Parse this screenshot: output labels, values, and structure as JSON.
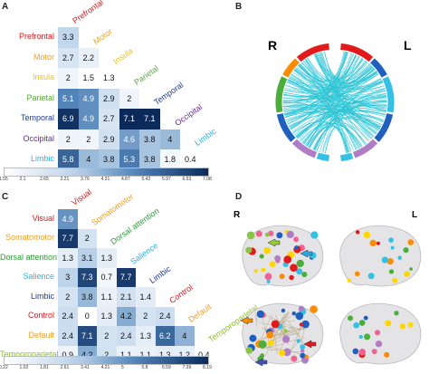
{
  "panels": {
    "a": {
      "letter": "A"
    },
    "b": {
      "letter": "B",
      "left_label": "R",
      "right_label": "L"
    },
    "c": {
      "letter": "C"
    },
    "d": {
      "letter": "D",
      "left_label": "R",
      "right_label": "L"
    }
  },
  "chart_data": [
    {
      "type": "heatmap",
      "panel": "A",
      "regions": [
        {
          "name": "Prefrontal",
          "color": "#d7191c"
        },
        {
          "name": "Motor",
          "color": "#f0a020"
        },
        {
          "name": "Insula",
          "color": "#e8c21a"
        },
        {
          "name": "Parietal",
          "color": "#5aa83a"
        },
        {
          "name": "Temporal",
          "color": "#1f3d8c"
        },
        {
          "name": "Occipital",
          "color": "#6a2c8c"
        },
        {
          "name": "Limbic",
          "color": "#2bb3e0"
        }
      ],
      "matrix": [
        [
          "3.3"
        ],
        [
          "2.7",
          "2.2"
        ],
        [
          "2",
          "1.5",
          "1.3"
        ],
        [
          "5.1",
          "4.9",
          "2.9",
          "2"
        ],
        [
          "6.9",
          "4.9",
          "2.7",
          "7.1",
          "7.1"
        ],
        [
          "2",
          "2",
          "2.9",
          "4.6",
          "3.8",
          "4"
        ],
        [
          "5.8",
          "4",
          "3.8",
          "5.3",
          "3.8",
          "1.8",
          "0.4"
        ]
      ],
      "colorbar_ticks": [
        "1.55",
        "2.1",
        "2.65",
        "3.21",
        "3.76",
        "4.31",
        "4.87",
        "5.42",
        "5.97",
        "6.53",
        "7.08"
      ],
      "colorbar_range": [
        1.55,
        7.08
      ]
    },
    {
      "type": "heatmap",
      "panel": "C",
      "regions": [
        {
          "name": "Visual",
          "color": "#d7191c"
        },
        {
          "name": "Somatomotor",
          "color": "#f0a020"
        },
        {
          "name": "Dorsal attention",
          "color": "#2f9a3a"
        },
        {
          "name": "Salience",
          "color": "#2bb3e0"
        },
        {
          "name": "Limbic",
          "color": "#1f3d8c"
        },
        {
          "name": "Control",
          "color": "#d7191c"
        },
        {
          "name": "Default",
          "color": "#f0a020"
        },
        {
          "name": "Temporoparietal",
          "color": "#8dbb2a"
        }
      ],
      "matrix": [
        [
          "4.9"
        ],
        [
          "7.7",
          "2"
        ],
        [
          "1.3",
          "3.1",
          "1.3"
        ],
        [
          "3",
          "7.3",
          "0.7",
          "7.7"
        ],
        [
          "2",
          "3.8",
          "1.1",
          "2.1",
          "1.4"
        ],
        [
          "2.4",
          "0",
          "1.3",
          "4.2",
          "2",
          "2.4"
        ],
        [
          "2.4",
          "7.1",
          "2",
          "2.4",
          "1.3",
          "6.2",
          "4"
        ],
        [
          "0.9",
          "4.2",
          "2",
          "1.1",
          "1.1",
          "1.3",
          "1.2",
          "0.4"
        ]
      ],
      "colorbar_ticks": [
        "0.22",
        "1.02",
        "1.81",
        "2.61",
        "3.41",
        "4.21",
        "5",
        "5.8",
        "6.59",
        "7.39",
        "8.19"
      ],
      "colorbar_range": [
        0.22,
        8.19
      ]
    }
  ],
  "colors": {
    "heat_low": "#ffffff",
    "heat_high": "#0b2a5a",
    "chord_line": "#2fc6d6",
    "ring": [
      "#e31a1c",
      "#ff8c00",
      "#ffd700",
      "#4cae3a",
      "#1f5fbf",
      "#b07cc6",
      "#35c0e6"
    ]
  }
}
